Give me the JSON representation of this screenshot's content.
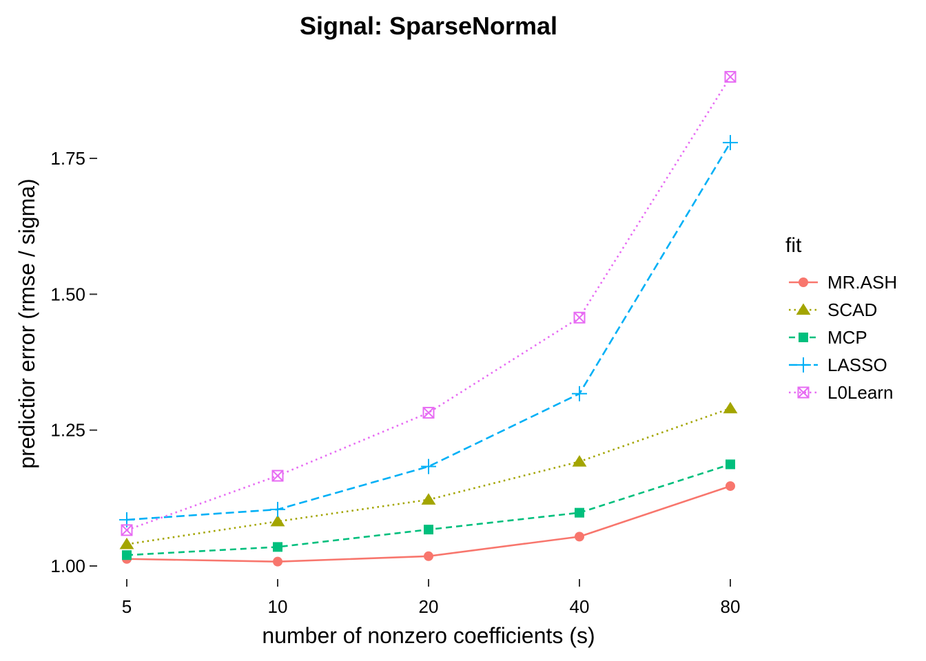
{
  "chart_data": {
    "type": "line",
    "title": "Signal: SparseNormal",
    "xlabel": "number of nonzero coefficients (s)",
    "ylabel": "predictior error (rmse / sigma)",
    "x": [
      "5",
      "10",
      "20",
      "40",
      "80"
    ],
    "x_scale": "categorical (log-spaced)",
    "ylim": [
      0.97,
      1.92
    ],
    "yticks": [
      1.0,
      1.25,
      1.5,
      1.75
    ],
    "ytick_labels": [
      "1.00",
      "1.25",
      "1.50",
      "1.75"
    ],
    "grid": false,
    "legend_title": "fit",
    "legend_position": "right",
    "series": [
      {
        "name": "MR.ASH",
        "color": "#F8766D",
        "marker": "circle",
        "line": "solid",
        "values": [
          1.013,
          1.008,
          1.018,
          1.054,
          1.147
        ]
      },
      {
        "name": "SCAD",
        "color": "#A3A500",
        "marker": "triangle",
        "line": "dotted",
        "values": [
          1.04,
          1.082,
          1.122,
          1.192,
          1.29
        ]
      },
      {
        "name": "MCP",
        "color": "#00BF7D",
        "marker": "square",
        "line": "dashed",
        "values": [
          1.02,
          1.035,
          1.067,
          1.098,
          1.187
        ]
      },
      {
        "name": "LASSO",
        "color": "#00B0F6",
        "marker": "plus",
        "line": "longdash",
        "values": [
          1.085,
          1.104,
          1.183,
          1.317,
          1.779
        ]
      },
      {
        "name": "L0Learn",
        "color": "#E76BF3",
        "marker": "boxcross",
        "line": "dotted",
        "values": [
          1.066,
          1.166,
          1.282,
          1.457,
          1.9
        ]
      }
    ]
  }
}
